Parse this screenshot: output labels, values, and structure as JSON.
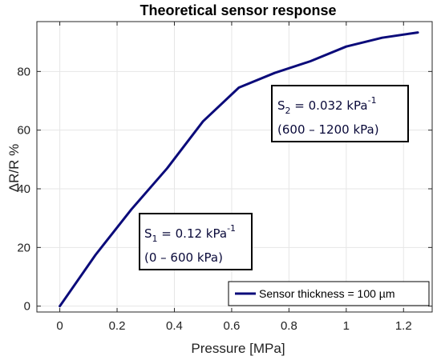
{
  "chart_data": {
    "type": "line",
    "title": "Theoretical sensor response",
    "xlabel": "Pressure [MPa]",
    "ylabel": "ΔR/R %",
    "xlim": [
      -0.08,
      1.3
    ],
    "ylim": [
      -2,
      97
    ],
    "x_ticks": [
      0,
      0.2,
      0.4,
      0.6,
      0.8,
      1,
      1.2
    ],
    "x_tick_labels": [
      "0",
      "0.2",
      "0.4",
      "0.6",
      "0.8",
      "1",
      "1.2"
    ],
    "y_ticks": [
      0,
      20,
      40,
      60,
      80
    ],
    "y_tick_labels": [
      "0",
      "20",
      "40",
      "60",
      "80"
    ],
    "grid": true,
    "legend_position": "bottom-right",
    "series": [
      {
        "name": "Sensor thickness = 100 µm",
        "color": "#0b0b7a",
        "x": [
          0,
          0.125,
          0.25,
          0.375,
          0.5,
          0.625,
          0.75,
          0.875,
          1.0,
          1.125,
          1.25
        ],
        "y": [
          0,
          17.5,
          33,
          47,
          63,
          74.5,
          79.5,
          83.5,
          88.5,
          91.5,
          93.3
        ]
      }
    ],
    "annotations": [
      {
        "sym": "S",
        "sub": "2",
        "rest": " = 0.032 kPa",
        "sup": "-1",
        "range": "(600 – 1200 kPa)"
      },
      {
        "sym": "S",
        "sub": "1",
        "rest": " = 0.12 kPa",
        "sup": "-1",
        "range": "(0 – 600 kPa)"
      }
    ]
  }
}
